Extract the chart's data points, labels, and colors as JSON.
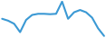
{
  "values": [
    55,
    50,
    42,
    20,
    52,
    65,
    68,
    68,
    67,
    68,
    100,
    55,
    72,
    78,
    72,
    58,
    30,
    10
  ],
  "line_color": "#3b99d4",
  "background_color": "#ffffff",
  "linewidth": 1.5
}
